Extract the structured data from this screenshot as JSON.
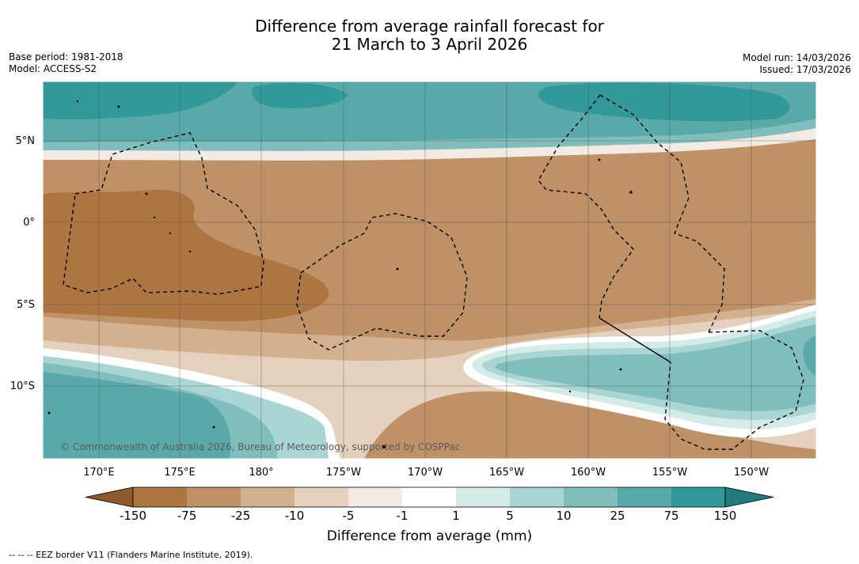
{
  "title": {
    "line1": "Difference from average rainfall forecast for",
    "line2": "21 March to 3 April 2026"
  },
  "meta_left": {
    "base_period": "Base period: 1981-2018",
    "model": "Model: ACCESS-S2"
  },
  "meta_right": {
    "model_run": "Model run: 14/03/2026",
    "issued": "Issued: 17/03/2026"
  },
  "lat_labels": [
    "5°N",
    "0°",
    "5°S",
    "10°S"
  ],
  "lon_labels": [
    "170°E",
    "175°E",
    "180°",
    "175°W",
    "170°W",
    "165°W",
    "160°W",
    "155°W",
    "150°W"
  ],
  "colorbar": {
    "ticks": [
      "-150",
      "-75",
      "-25",
      "-10",
      "-5",
      "-1",
      "1",
      "5",
      "10",
      "25",
      "75",
      "150"
    ],
    "colors": [
      "#8d5a2c",
      "#ad7541",
      "#be9266",
      "#d3b08e",
      "#e4d0bd",
      "#f2ebe4",
      "#ffffff",
      "#d5ebe7",
      "#a9d6d2",
      "#80bdbd",
      "#59a9a9",
      "#339898",
      "#237b7b"
    ],
    "title": "Difference from average (mm)"
  },
  "copyright": "© Commonwealth of Australia 2026, Bureau of Meteorology, supported by COSPPac",
  "footnote": "--  --  -- EEZ border V11 (Flanders Marine Institute, 2019)."
}
